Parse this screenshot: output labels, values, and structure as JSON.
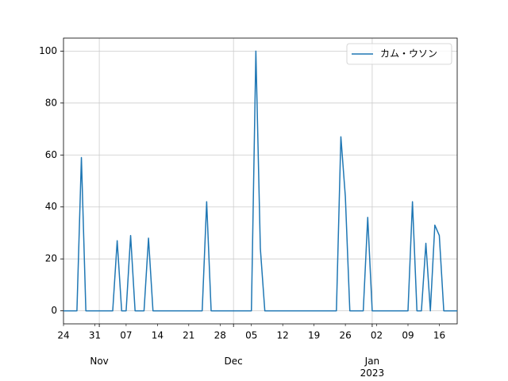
{
  "chart_data": {
    "type": "line",
    "x": [
      "2022-10-24",
      "2022-10-25",
      "2022-10-26",
      "2022-10-27",
      "2022-10-28",
      "2022-10-29",
      "2022-10-30",
      "2022-10-31",
      "2022-11-01",
      "2022-11-02",
      "2022-11-03",
      "2022-11-04",
      "2022-11-05",
      "2022-11-06",
      "2022-11-07",
      "2022-11-08",
      "2022-11-09",
      "2022-11-10",
      "2022-11-11",
      "2022-11-12",
      "2022-11-13",
      "2022-11-14",
      "2022-11-15",
      "2022-11-16",
      "2022-11-17",
      "2022-11-18",
      "2022-11-19",
      "2022-11-20",
      "2022-11-21",
      "2022-11-22",
      "2022-11-23",
      "2022-11-24",
      "2022-11-25",
      "2022-11-26",
      "2022-11-27",
      "2022-11-28",
      "2022-11-29",
      "2022-11-30",
      "2022-12-01",
      "2022-12-02",
      "2022-12-03",
      "2022-12-04",
      "2022-12-05",
      "2022-12-06",
      "2022-12-07",
      "2022-12-08",
      "2022-12-09",
      "2022-12-10",
      "2022-12-11",
      "2022-12-12",
      "2022-12-13",
      "2022-12-14",
      "2022-12-15",
      "2022-12-16",
      "2022-12-17",
      "2022-12-18",
      "2022-12-19",
      "2022-12-20",
      "2022-12-21",
      "2022-12-22",
      "2022-12-23",
      "2022-12-24",
      "2022-12-25",
      "2022-12-26",
      "2022-12-27",
      "2022-12-28",
      "2022-12-29",
      "2022-12-30",
      "2022-12-31",
      "2023-01-01",
      "2023-01-02",
      "2023-01-03",
      "2023-01-04",
      "2023-01-05",
      "2023-01-06",
      "2023-01-07",
      "2023-01-08",
      "2023-01-09",
      "2023-01-10",
      "2023-01-11",
      "2023-01-12",
      "2023-01-13",
      "2023-01-14",
      "2023-01-15",
      "2023-01-16",
      "2023-01-17",
      "2023-01-18",
      "2023-01-19",
      "2023-01-20"
    ],
    "series": [
      {
        "name": "カム・ウソン",
        "color": "#1f77b4",
        "values": [
          0,
          0,
          0,
          0,
          59,
          0,
          0,
          0,
          0,
          0,
          0,
          0,
          27,
          0,
          0,
          29,
          0,
          0,
          0,
          28,
          0,
          0,
          0,
          0,
          0,
          0,
          0,
          0,
          0,
          0,
          0,
          0,
          42,
          0,
          0,
          0,
          0,
          0,
          0,
          0,
          0,
          0,
          0,
          100,
          24,
          0,
          0,
          0,
          0,
          0,
          0,
          0,
          0,
          0,
          0,
          0,
          0,
          0,
          0,
          0,
          0,
          0,
          67,
          44,
          0,
          0,
          0,
          0,
          36,
          0,
          0,
          0,
          0,
          0,
          0,
          0,
          0,
          0,
          42,
          0,
          0,
          26,
          0,
          33,
          29,
          0,
          0,
          0,
          0
        ]
      }
    ],
    "xlim": [
      "2022-10-24",
      "2023-01-20"
    ],
    "xticks": [
      {
        "value": "2022-10-24",
        "label": "24"
      },
      {
        "value": "2022-10-31",
        "label": "31"
      },
      {
        "value": "2022-11-07",
        "label": "07"
      },
      {
        "value": "2022-11-14",
        "label": "14"
      },
      {
        "value": "2022-11-21",
        "label": "21"
      },
      {
        "value": "2022-11-28",
        "label": "28"
      },
      {
        "value": "2022-12-05",
        "label": "05"
      },
      {
        "value": "2022-12-12",
        "label": "12"
      },
      {
        "value": "2022-12-19",
        "label": "19"
      },
      {
        "value": "2022-12-26",
        "label": "26"
      },
      {
        "value": "2023-01-02",
        "label": "02"
      },
      {
        "value": "2023-01-09",
        "label": "09"
      },
      {
        "value": "2023-01-16",
        "label": "16"
      }
    ],
    "xticks_major": [
      {
        "value": "2022-11-01",
        "label": "Nov"
      },
      {
        "value": "2022-12-01",
        "label": "Dec"
      },
      {
        "value": "2023-01-01",
        "label": "Jan\n2023"
      }
    ],
    "ylim": [
      -5,
      105
    ],
    "yticks": [
      0,
      20,
      40,
      60,
      80,
      100
    ],
    "grid": true,
    "legend": "upper right"
  }
}
